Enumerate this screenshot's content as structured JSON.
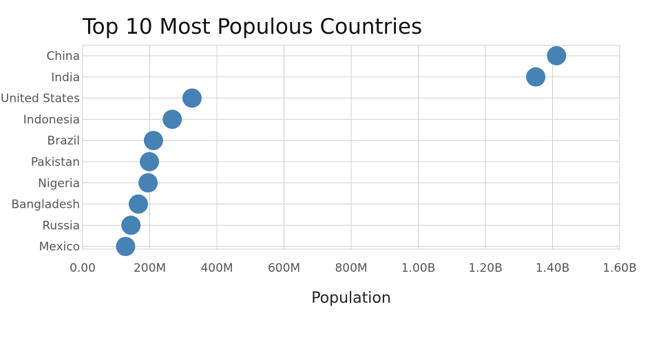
{
  "chart_data": {
    "type": "scatter",
    "title": "Top 10 Most Populous Countries",
    "xlabel": "Population",
    "ylabel": "",
    "xlim": [
      0,
      1600000000
    ],
    "x_ticks": [
      0,
      200000000,
      400000000,
      600000000,
      800000000,
      1000000000,
      1200000000,
      1400000000,
      1600000000
    ],
    "x_tick_labels": [
      "0.00",
      "200M",
      "400M",
      "600M",
      "800M",
      "1.00B",
      "1.20B",
      "1.40B",
      "1.60B"
    ],
    "categories": [
      "China",
      "India",
      "United States",
      "Indonesia",
      "Brazil",
      "Pakistan",
      "Nigeria",
      "Bangladesh",
      "Russia",
      "Mexico"
    ],
    "values": [
      1412000000,
      1350000000,
      326000000,
      267000000,
      211000000,
      199000000,
      195000000,
      166000000,
      144000000,
      128000000
    ],
    "marker_color": "#4682b4",
    "grid": true,
    "legend": "none"
  }
}
